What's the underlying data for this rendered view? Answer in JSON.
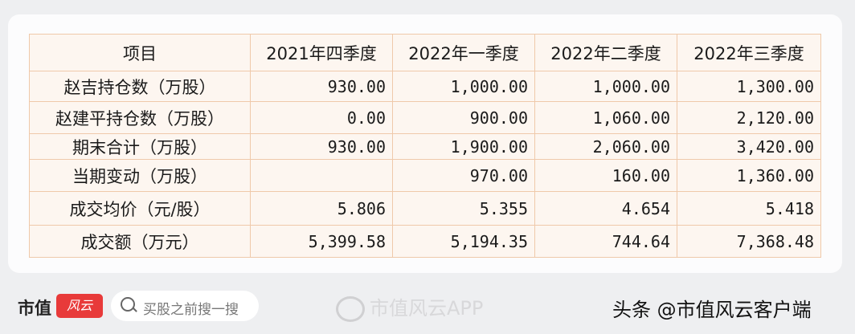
{
  "table": {
    "headers": [
      "项目",
      "2021年四季度",
      "2022年一季度",
      "2022年二季度",
      "2022年三季度"
    ],
    "rows": [
      {
        "label": "赵吉持仓数（万股）",
        "values": [
          "930.00",
          "1,000.00",
          "1,000.00",
          "1,300.00"
        ]
      },
      {
        "label": "赵建平持仓数（万股）",
        "values": [
          "0.00",
          "900.00",
          "1,060.00",
          "2,120.00"
        ]
      },
      {
        "label": "期末合计（万股）",
        "values": [
          "930.00",
          "1,900.00",
          "2,060.00",
          "3,420.00"
        ]
      },
      {
        "label": "当期变动（万股）",
        "values": [
          "",
          "970.00",
          "160.00",
          "1,360.00"
        ]
      },
      {
        "label": "成交均价（元/股）",
        "values": [
          "5.806",
          "5.355",
          "4.654",
          "5.418"
        ]
      },
      {
        "label": "成交额（万元）",
        "values": [
          "5,399.58",
          "5,194.35",
          "744.64",
          "7,368.48"
        ]
      }
    ]
  },
  "footer": {
    "logo_text": "市值",
    "logo_mark": "风云",
    "search_placeholder": "买股之前搜一搜",
    "watermark": "市值风云APP",
    "credit": "头条 @市值风云客户端"
  },
  "colors": {
    "border": "#efc9aa",
    "table_bg": "#fdf6f0",
    "brand_red": "#e83a3a"
  }
}
